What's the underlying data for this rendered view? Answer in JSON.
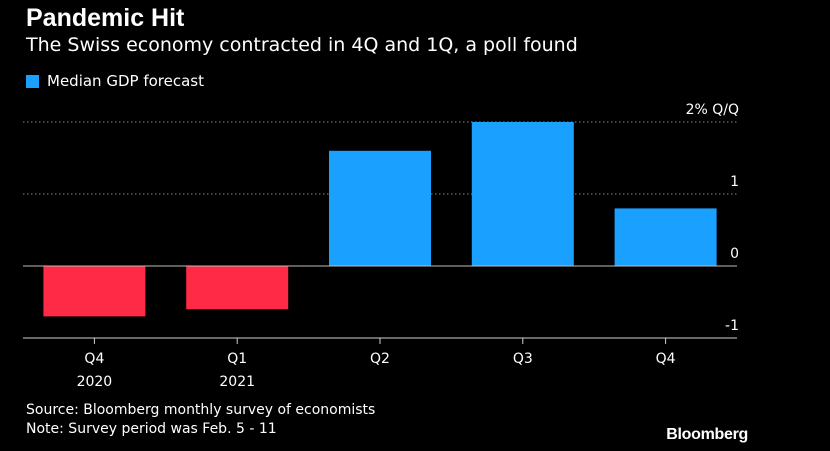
{
  "title": "Pandemic Hit",
  "subtitle": "The Swiss economy contracted in 4Q and 1Q, a poll found",
  "legend": {
    "label": "Median GDP forecast"
  },
  "colors": {
    "positive": "#1aa1ff",
    "negative": "#ff2a45",
    "background": "#000000",
    "grid": "#8a8a8a"
  },
  "chart_data": {
    "type": "bar",
    "categories": [
      {
        "top": "Q4",
        "bottom": "2020"
      },
      {
        "top": "Q1",
        "bottom": "2021"
      },
      {
        "top": "Q2",
        "bottom": ""
      },
      {
        "top": "Q3",
        "bottom": ""
      },
      {
        "top": "Q4",
        "bottom": ""
      }
    ],
    "series": [
      {
        "name": "Median GDP forecast",
        "values": [
          -0.7,
          -0.6,
          1.6,
          2.0,
          0.8
        ]
      }
    ],
    "ylim": [
      -1,
      2
    ],
    "y_ticks": [
      {
        "value": 2,
        "label": "2% Q/Q"
      },
      {
        "value": 1,
        "label": "1"
      },
      {
        "value": 0,
        "label": "0"
      },
      {
        "value": -1,
        "label": "-1"
      }
    ],
    "grid": true,
    "legend_position": "top-left"
  },
  "footer": {
    "source": "Source: Bloomberg monthly survey of economists",
    "note": "Note: Survey period was Feb. 5 - 11",
    "brand": "Bloomberg"
  }
}
